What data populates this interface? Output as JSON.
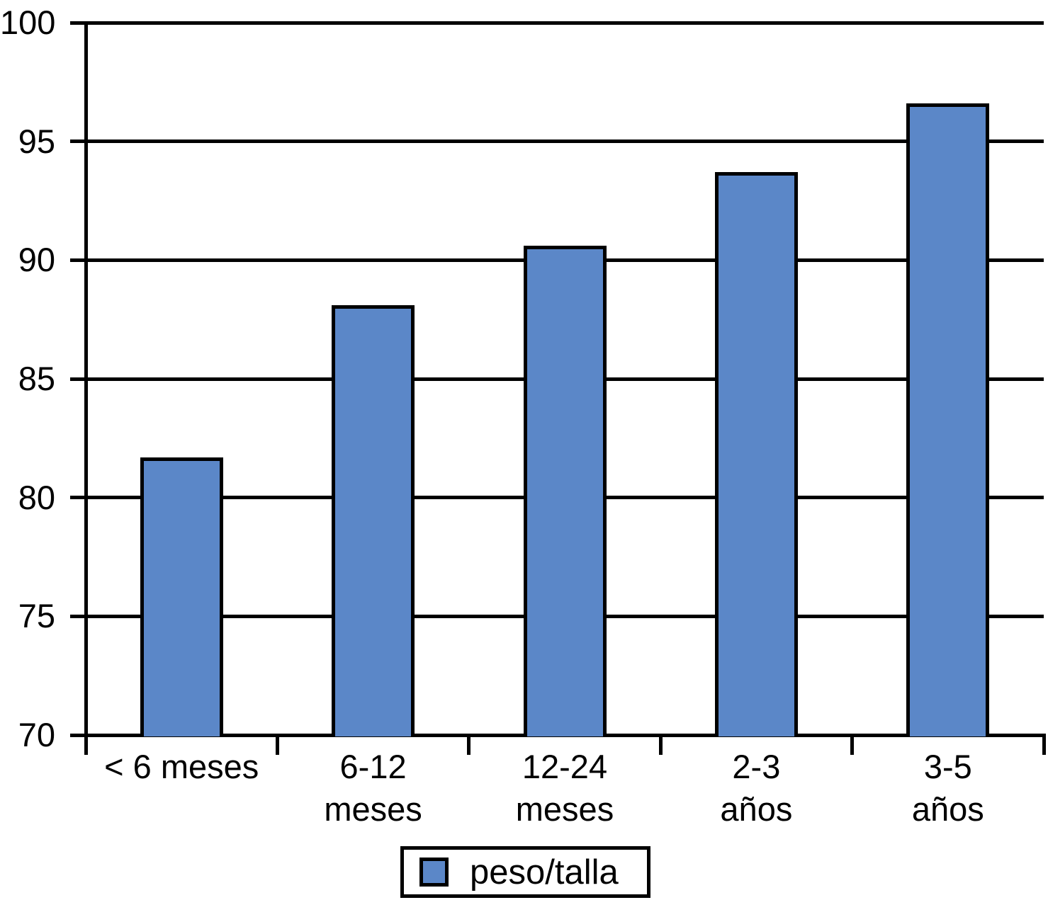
{
  "chart_data": {
    "type": "bar",
    "categories": [
      "< 6 meses",
      "6-12\nmeses",
      "12-24\nmeses",
      "2-3\naños",
      "3-5\naños"
    ],
    "values": [
      81.7,
      88.1,
      90.6,
      93.7,
      96.6
    ],
    "series_name": "peso/talla",
    "title": "",
    "xlabel": "",
    "ylabel": "",
    "ylim": [
      70,
      100
    ],
    "yticks": [
      70,
      75,
      80,
      85,
      90,
      95,
      100
    ],
    "grid": true,
    "legend_position": "bottom-center",
    "colors": {
      "bar_fill": "#5b87c8",
      "line": "#000000",
      "background": "#ffffff",
      "text": "#000000"
    }
  },
  "legend": {
    "label": "peso/talla"
  }
}
